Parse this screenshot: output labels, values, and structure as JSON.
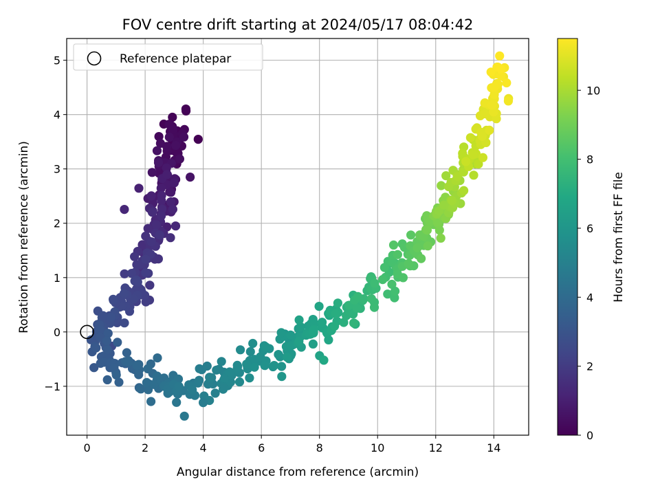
{
  "chart_data": {
    "type": "scatter",
    "title": "FOV centre drift starting at 2024/05/17 08:04:42",
    "xlabel": "Angular distance from reference (arcmin)",
    "ylabel": "Rotation from reference (arcmin)",
    "xlim": [
      -0.7,
      15.2
    ],
    "ylim": [
      -1.9,
      5.4
    ],
    "xticks": [
      0,
      2,
      4,
      6,
      8,
      10,
      12,
      14
    ],
    "yticks": [
      -1,
      0,
      1,
      2,
      3,
      4,
      5
    ],
    "grid": true,
    "legend": {
      "position": "top-left",
      "entries": [
        "Reference platepar"
      ]
    },
    "reference_point": {
      "x": 0,
      "y": 0
    },
    "colorbar": {
      "label": "Hours from first FF file",
      "colormap": "viridis",
      "range": [
        0,
        11.5
      ],
      "ticks": [
        0,
        2,
        4,
        6,
        8,
        10
      ]
    },
    "trajectory": [
      {
        "hours": 0.0,
        "x": 3.05,
        "y": 3.75
      },
      {
        "hours": 0.2,
        "x": 3.0,
        "y": 3.55
      },
      {
        "hours": 0.35,
        "x": 2.95,
        "y": 3.25
      },
      {
        "hours": 0.6,
        "x": 2.75,
        "y": 2.9
      },
      {
        "hours": 0.9,
        "x": 2.6,
        "y": 2.55
      },
      {
        "hours": 1.2,
        "x": 2.45,
        "y": 2.2
      },
      {
        "hours": 1.5,
        "x": 2.25,
        "y": 1.75
      },
      {
        "hours": 1.8,
        "x": 2.05,
        "y": 1.3
      },
      {
        "hours": 2.1,
        "x": 1.85,
        "y": 0.9
      },
      {
        "hours": 2.4,
        "x": 1.45,
        "y": 0.6
      },
      {
        "hours": 2.7,
        "x": 0.8,
        "y": 0.25
      },
      {
        "hours": 3.0,
        "x": 0.35,
        "y": -0.1
      },
      {
        "hours": 3.3,
        "x": 0.65,
        "y": -0.5
      },
      {
        "hours": 3.7,
        "x": 1.6,
        "y": -0.7
      },
      {
        "hours": 4.1,
        "x": 2.4,
        "y": -0.9
      },
      {
        "hours": 4.5,
        "x": 3.2,
        "y": -1.05
      },
      {
        "hours": 4.9,
        "x": 4.1,
        "y": -0.95
      },
      {
        "hours": 5.3,
        "x": 5.0,
        "y": -0.72
      },
      {
        "hours": 5.7,
        "x": 6.1,
        "y": -0.45
      },
      {
        "hours": 6.1,
        "x": 6.9,
        "y": -0.25
      },
      {
        "hours": 6.5,
        "x": 7.6,
        "y": -0.05
      },
      {
        "hours": 6.9,
        "x": 8.3,
        "y": 0.15
      },
      {
        "hours": 7.3,
        "x": 9.0,
        "y": 0.4
      },
      {
        "hours": 7.7,
        "x": 9.8,
        "y": 0.75
      },
      {
        "hours": 8.1,
        "x": 10.6,
        "y": 1.1
      },
      {
        "hours": 8.5,
        "x": 11.2,
        "y": 1.45
      },
      {
        "hours": 8.9,
        "x": 11.7,
        "y": 1.8
      },
      {
        "hours": 9.3,
        "x": 12.1,
        "y": 2.1
      },
      {
        "hours": 9.7,
        "x": 12.5,
        "y": 2.45
      },
      {
        "hours": 10.1,
        "x": 12.9,
        "y": 2.9
      },
      {
        "hours": 10.5,
        "x": 13.3,
        "y": 3.35
      },
      {
        "hours": 10.9,
        "x": 13.7,
        "y": 3.85
      },
      {
        "hours": 11.2,
        "x": 14.05,
        "y": 4.35
      },
      {
        "hours": 11.5,
        "x": 14.25,
        "y": 4.85
      }
    ],
    "scatter_outliers": [
      {
        "x": 3.55,
        "y": 2.85,
        "hours": 0.6
      },
      {
        "x": 3.05,
        "y": 1.95,
        "hours": 1.3
      },
      {
        "x": 0.9,
        "y": 0.6,
        "hours": 2.6
      },
      {
        "x": 0.55,
        "y": 0.3,
        "hours": 2.8
      },
      {
        "x": 0.7,
        "y": -0.88,
        "hours": 3.5
      },
      {
        "x": 1.85,
        "y": -1.05,
        "hours": 3.9
      },
      {
        "x": 2.2,
        "y": -1.28,
        "hours": 4.1
      },
      {
        "x": 3.35,
        "y": -1.55,
        "hours": 4.6
      },
      {
        "x": 4.0,
        "y": -1.3,
        "hours": 4.8
      },
      {
        "x": 5.25,
        "y": -0.92,
        "hours": 5.4
      },
      {
        "x": 6.7,
        "y": -0.82,
        "hours": 6.0
      },
      {
        "x": 7.3,
        "y": 0.22,
        "hours": 6.6
      },
      {
        "x": 8.15,
        "y": -0.52,
        "hours": 6.9
      },
      {
        "x": 10.6,
        "y": 0.75,
        "hours": 8.0
      },
      {
        "x": 10.55,
        "y": 1.6,
        "hours": 8.4
      },
      {
        "x": 11.5,
        "y": 1.35,
        "hours": 8.7
      },
      {
        "x": 14.2,
        "y": 5.08,
        "hours": 11.5
      },
      {
        "x": 14.5,
        "y": 4.25,
        "hours": 11.3
      }
    ]
  }
}
